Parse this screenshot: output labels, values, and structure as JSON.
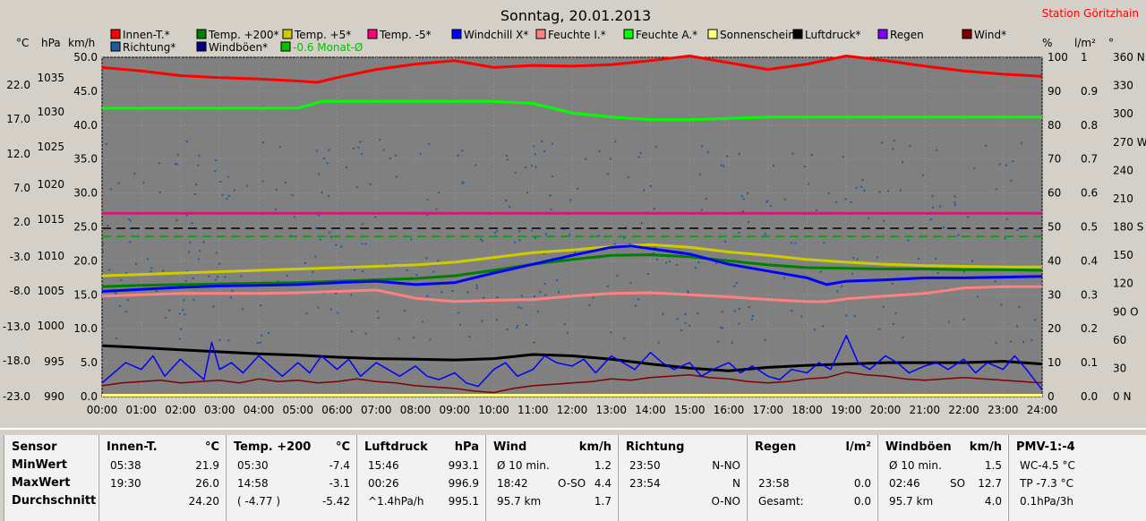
{
  "chart_data": {
    "type": "line",
    "title": "Sonntag, 20.01.2013",
    "station": "Station Göritzhain",
    "legend_row1": [
      {
        "name": "Innen-T.*",
        "color": "#ff0000"
      },
      {
        "name": "Temp. +200*",
        "color": "#008000"
      },
      {
        "name": "Temp. +5*",
        "color": "#cccc00"
      },
      {
        "name": "Temp. -5*",
        "color": "#ff0080"
      },
      {
        "name": "Windchill X*",
        "color": "#0000ff"
      },
      {
        "name": "Feuchte I.*",
        "color": "#ff8080"
      },
      {
        "name": "Feuchte A.*",
        "color": "#00ff00"
      },
      {
        "name": "Sonnenschein",
        "color": "#ffff80"
      },
      {
        "name": "Luftdruck*",
        "color": "#000000"
      },
      {
        "name": "Regen",
        "color": "#8000ff"
      },
      {
        "name": "Wind*",
        "color": "#800000"
      }
    ],
    "legend_row2": [
      {
        "name": "Richtung*",
        "color": "#1e5aa0"
      },
      {
        "name": "Windböen*",
        "color": "#000080"
      },
      {
        "name": "-0.6 Monat-Ø",
        "color": "#00c000"
      }
    ],
    "axis_units_left": [
      "°C",
      "hPa",
      "km/h"
    ],
    "axis_units_right": [
      "%",
      "l/m²",
      "°"
    ],
    "y_temp_ticks": [
      "22.0",
      "17.0",
      "12.0",
      "7.0",
      "2.0",
      "-3.0",
      "-8.0",
      "-13.0",
      "-18.0",
      "-23.0"
    ],
    "y_hpa_ticks": [
      "1035",
      "1030",
      "1025",
      "1020",
      "1015",
      "1010",
      "1005",
      "1000",
      "995",
      "990"
    ],
    "y_kmh_ticks": [
      "50.0",
      "45.0",
      "40.0",
      "35.0",
      "30.0",
      "25.0",
      "20.0",
      "15.0",
      "10.0",
      "5.0",
      "0.0"
    ],
    "y_pct_ticks": [
      "100",
      "90",
      "80",
      "70",
      "60",
      "50",
      "40",
      "30",
      "20",
      "10",
      "0"
    ],
    "y_rain_ticks": [
      "1",
      "0.9",
      "0.8",
      "0.7",
      "0.6",
      "0.5",
      "0.4",
      "0.3",
      "0.2",
      "0.1",
      "0.0"
    ],
    "y_deg_ticks": [
      "360 N",
      "330",
      "300",
      "270 W",
      "240",
      "210",
      "180 S",
      "150",
      "120",
      "90 O",
      "60",
      "30",
      "0   N"
    ],
    "x_ticks": [
      "00:00",
      "01:00",
      "02:00",
      "03:00",
      "04:00",
      "05:00",
      "06:00",
      "07:00",
      "08:00",
      "09:00",
      "10:00",
      "11:00",
      "12:00",
      "13:00",
      "14:00",
      "15:00",
      "16:00",
      "17:00",
      "18:00",
      "19:00",
      "20:00",
      "21:00",
      "22:00",
      "23:00",
      "24:00"
    ],
    "ylim_kmh": [
      0,
      50
    ],
    "xlim_hours": [
      0,
      24
    ],
    "grid": true,
    "series": [
      {
        "name": "Innen-T.*",
        "color": "#ff0000",
        "axis": "kmh",
        "x": [
          0,
          1,
          2,
          3,
          4,
          5,
          5.5,
          6,
          7,
          8,
          9,
          10,
          11,
          12,
          13,
          14,
          15,
          16,
          17,
          18,
          19,
          20,
          21,
          22,
          23,
          24
        ],
        "y": [
          48.5,
          48,
          47.3,
          47,
          46.8,
          46.5,
          46.3,
          47,
          48.2,
          49,
          49.5,
          48.5,
          48.8,
          48.7,
          48.9,
          49.5,
          50.2,
          49.2,
          48.2,
          49,
          50.2,
          49.5,
          48.7,
          48,
          47.5,
          47.2
        ]
      },
      {
        "name": "Feuchte A.*",
        "color": "#00ff00",
        "axis": "kmh",
        "x": [
          0,
          1,
          2,
          3,
          4,
          5,
          5.6,
          6,
          7,
          8,
          9,
          10,
          11,
          12,
          13,
          14,
          15,
          16,
          17,
          18,
          19,
          20,
          21,
          22,
          23,
          24
        ],
        "y": [
          42.5,
          42.5,
          42.5,
          42.5,
          42.5,
          42.5,
          43.5,
          43.5,
          43.5,
          43.5,
          43.5,
          43.5,
          43.2,
          41.8,
          41.2,
          40.8,
          40.8,
          41,
          41.2,
          41.2,
          41.2,
          41.2,
          41.2,
          41.2,
          41.2,
          41.2
        ]
      },
      {
        "name": "Temp. -5*",
        "color": "#ff0080",
        "axis": "kmh",
        "x": [
          0,
          24
        ],
        "y": [
          27.0,
          27.0
        ]
      },
      {
        "name": "Temp. +5*",
        "color": "#cccc00",
        "axis": "kmh",
        "x": [
          0,
          1,
          2,
          3,
          4,
          5,
          6,
          7,
          8,
          9,
          10,
          11,
          12,
          13,
          14,
          15,
          16,
          17,
          18,
          19,
          20,
          21,
          22,
          23,
          24
        ],
        "y": [
          17.8,
          18,
          18.2,
          18.4,
          18.6,
          18.8,
          19.0,
          19.2,
          19.4,
          19.8,
          20.5,
          21.2,
          21.6,
          22.1,
          22.4,
          22.0,
          21.3,
          20.8,
          20.2,
          19.8,
          19.5,
          19.3,
          19.2,
          19.1,
          19.1
        ]
      },
      {
        "name": "Temp. +200*",
        "color": "#008000",
        "axis": "kmh",
        "x": [
          0,
          1,
          2,
          3,
          4,
          5,
          6,
          7,
          8,
          9,
          10,
          11,
          12,
          13,
          14,
          15,
          16,
          17,
          18,
          19,
          20,
          21,
          22,
          23,
          24
        ],
        "y": [
          16.2,
          16.4,
          16.5,
          16.6,
          16.7,
          16.8,
          17.0,
          17.2,
          17.4,
          17.8,
          18.6,
          19.5,
          20.2,
          20.8,
          20.9,
          20.6,
          20.0,
          19.4,
          19.0,
          18.9,
          18.8,
          18.8,
          18.7,
          18.7,
          18.6
        ]
      },
      {
        "name": "Windchill X*",
        "color": "#0000ff",
        "axis": "kmh",
        "x": [
          0,
          1,
          2,
          3,
          4,
          5,
          6,
          7,
          8,
          9,
          10,
          11,
          12,
          13,
          13.5,
          14,
          15,
          16,
          17,
          18,
          18.5,
          19,
          20,
          21,
          22,
          23,
          24
        ],
        "y": [
          15.5,
          15.8,
          16.1,
          16.3,
          16.4,
          16.5,
          16.8,
          17.0,
          16.5,
          16.8,
          18.2,
          19.5,
          20.8,
          22.0,
          22.2,
          21.8,
          21.0,
          19.5,
          18.5,
          17.5,
          16.5,
          17.0,
          17.2,
          17.5,
          17.5,
          17.6,
          17.7
        ]
      },
      {
        "name": "Feuchte I.*",
        "color": "#ff8080",
        "axis": "kmh",
        "x": [
          0,
          1,
          2,
          3,
          4,
          5,
          6,
          7,
          8,
          9,
          10,
          11,
          12,
          13,
          14,
          15,
          16,
          17,
          18,
          18.5,
          19,
          20,
          21,
          22,
          23,
          24
        ],
        "y": [
          14.8,
          15,
          15.2,
          15.2,
          15.2,
          15.3,
          15.5,
          15.7,
          14.5,
          14.0,
          14.2,
          14.3,
          14.8,
          15.2,
          15.3,
          15.0,
          14.7,
          14.3,
          14.0,
          14.0,
          14.4,
          14.8,
          15.2,
          16.0,
          16.2,
          16.2
        ]
      },
      {
        "name": "Luftdruck*",
        "color": "#000000",
        "axis": "kmh",
        "x": [
          0,
          1,
          2,
          3,
          4,
          5,
          6,
          7,
          8,
          9,
          10,
          11,
          12,
          13,
          14,
          15,
          16,
          17,
          18,
          19,
          20,
          21,
          22,
          23,
          24
        ],
        "y": [
          7.5,
          7.2,
          6.9,
          6.6,
          6.3,
          6.1,
          5.8,
          5.6,
          5.5,
          5.4,
          5.6,
          6.2,
          6.0,
          5.5,
          4.8,
          4.2,
          3.8,
          4.3,
          4.6,
          4.8,
          5.0,
          5.0,
          5.0,
          5.2,
          4.8
        ]
      },
      {
        "name": "Wind*",
        "color": "#800000",
        "axis": "kmh",
        "x": [
          0,
          0.5,
          1,
          1.5,
          2,
          2.5,
          3,
          3.5,
          4,
          4.5,
          5,
          5.5,
          6,
          6.5,
          7,
          7.5,
          8,
          8.5,
          9,
          9.5,
          10,
          10.5,
          11,
          11.5,
          12,
          12.5,
          13,
          13.5,
          14,
          14.5,
          15,
          15.5,
          16,
          16.5,
          17,
          17.5,
          18,
          18.5,
          19,
          19.5,
          20,
          20.5,
          21,
          21.5,
          22,
          22.5,
          23,
          23.5,
          24
        ],
        "y": [
          1.6,
          2.0,
          2.2,
          2.4,
          2.0,
          2.2,
          2.4,
          2.0,
          2.6,
          2.2,
          2.4,
          2.0,
          2.2,
          2.6,
          2.2,
          2.0,
          1.6,
          1.4,
          1.2,
          0.8,
          0.6,
          1.2,
          1.6,
          1.8,
          2.0,
          2.2,
          2.6,
          2.4,
          2.8,
          3.0,
          3.2,
          2.8,
          2.6,
          2.2,
          2.0,
          2.2,
          2.6,
          2.8,
          3.6,
          3.2,
          3.0,
          2.6,
          2.4,
          2.6,
          2.8,
          2.6,
          2.4,
          2.2,
          2.0
        ]
      },
      {
        "name": "Windböen*",
        "color": "#0000ff",
        "axis": "kmh",
        "x": [
          0,
          0.3,
          0.6,
          1,
          1.3,
          1.6,
          2,
          2.3,
          2.6,
          2.8,
          3,
          3.3,
          3.6,
          4,
          4.3,
          4.6,
          5,
          5.3,
          5.6,
          6,
          6.3,
          6.6,
          7,
          7.3,
          7.6,
          8,
          8.3,
          8.6,
          9,
          9.3,
          9.6,
          10,
          10.3,
          10.6,
          11,
          11.3,
          11.6,
          12,
          12.3,
          12.6,
          13,
          13.3,
          13.6,
          14,
          14.3,
          14.6,
          15,
          15.3,
          15.6,
          16,
          16.3,
          16.6,
          17,
          17.3,
          17.6,
          18,
          18.3,
          18.6,
          19,
          19.3,
          19.6,
          20,
          20.3,
          20.6,
          21,
          21.3,
          21.6,
          22,
          22.3,
          22.6,
          23,
          23.3,
          23.6,
          24
        ],
        "y": [
          2,
          3.5,
          5,
          4,
          6,
          3,
          5.5,
          4,
          2.5,
          8,
          4,
          5,
          3.5,
          6,
          4.5,
          3,
          5,
          3.5,
          6,
          4,
          5.5,
          3,
          5,
          4,
          3,
          4.5,
          3,
          2.5,
          3.5,
          2,
          1.5,
          4,
          5,
          3,
          4,
          6,
          5,
          4.5,
          5.5,
          3.5,
          6,
          5,
          4,
          6.5,
          5,
          4,
          5,
          3,
          4,
          5,
          3.5,
          4.5,
          3,
          2.5,
          4,
          3.5,
          5,
          4,
          9,
          5,
          4,
          6,
          5,
          3.5,
          4.5,
          5,
          4,
          5.5,
          3.5,
          5,
          4,
          6,
          4,
          1
        ]
      },
      {
        "name": "Sonnenschein",
        "color": "#ffff80",
        "axis": "kmh",
        "x": [
          0,
          24
        ],
        "y": [
          0.2,
          0.2
        ]
      }
    ],
    "dashed_lines": [
      {
        "color": "#000000",
        "y_kmh": 24.8
      },
      {
        "color": "#00a000",
        "y_kmh": 23.6
      }
    ]
  },
  "table": [
    {
      "header": "Sensor",
      "unit": "",
      "rows": [
        [
          "MinWert",
          "",
          ""
        ],
        [
          "MaxWert",
          "",
          ""
        ],
        [
          "Durchschnitt",
          "",
          ""
        ]
      ],
      "bold_col": true
    },
    {
      "header": "Innen-T.",
      "unit": "°C",
      "rows": [
        [
          "05:38",
          "",
          "21.9"
        ],
        [
          "19:30",
          "",
          "26.0"
        ],
        [
          "",
          "",
          "24.20"
        ]
      ]
    },
    {
      "header": "Temp. +200",
      "unit": "°C",
      "rows": [
        [
          "05:30",
          "",
          "-7.4"
        ],
        [
          "14:58",
          "",
          "-3.1"
        ],
        [
          "( -4.77 )",
          "",
          "-5.42"
        ]
      ]
    },
    {
      "header": "Luftdruck",
      "unit": "hPa",
      "rows": [
        [
          "15:46",
          "",
          "993.1"
        ],
        [
          "00:26",
          "",
          "996.9"
        ],
        [
          "^1.4hPa/h",
          "",
          "995.1"
        ]
      ]
    },
    {
      "header": "Wind",
      "unit": "km/h",
      "rows": [
        [
          "Ø 10 min.",
          "",
          "1.2"
        ],
        [
          "18:42",
          "O-SO",
          "4.4"
        ],
        [
          "95.7 km",
          "",
          "1.7"
        ]
      ]
    },
    {
      "header": "Richtung",
      "unit": "",
      "rows": [
        [
          "23:50",
          "",
          "N-NO"
        ],
        [
          "23:54",
          "",
          "N"
        ],
        [
          "",
          "",
          "O-NO"
        ]
      ]
    },
    {
      "header": "Regen",
      "unit": "l/m²",
      "rows": [
        [
          "",
          "",
          ""
        ],
        [
          "23:58",
          "",
          "0.0"
        ],
        [
          "Gesamt:",
          "",
          "0.0"
        ]
      ]
    },
    {
      "header": "Windböen",
      "unit": "km/h",
      "rows": [
        [
          "Ø 10 min.",
          "",
          "1.5"
        ],
        [
          "02:46",
          "SO",
          "12.7"
        ],
        [
          "95.7 km",
          "",
          "4.0"
        ]
      ]
    },
    {
      "header": "PMV-1:-4",
      "unit": "",
      "rows": [
        [
          "WC-4.5 °C",
          "",
          ""
        ],
        [
          "TP -7.3 °C",
          "",
          ""
        ],
        [
          "0.1hPa/3h",
          "",
          ""
        ]
      ]
    }
  ]
}
